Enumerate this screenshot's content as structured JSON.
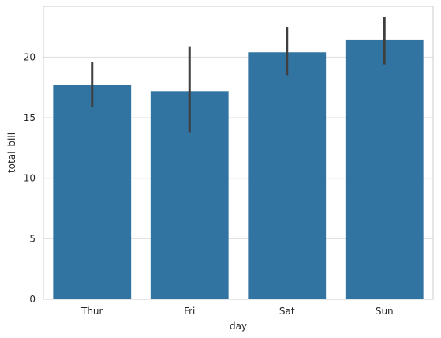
{
  "chart_data": {
    "type": "bar",
    "title": "",
    "xlabel": "day",
    "ylabel": "total_bill",
    "categories": [
      "Thur",
      "Fri",
      "Sat",
      "Sun"
    ],
    "values": [
      17.7,
      17.2,
      20.4,
      21.4
    ],
    "error_bars": [
      [
        15.9,
        19.6
      ],
      [
        13.8,
        20.9
      ],
      [
        18.5,
        22.5
      ],
      [
        19.4,
        23.3
      ]
    ],
    "ylim": [
      0,
      24.2
    ],
    "yticks": [
      0,
      5,
      10,
      15,
      20
    ],
    "ytick_labels": [
      "0",
      "5",
      "10",
      "15",
      "20"
    ],
    "grid": "horizontal",
    "colors": {
      "bar": "#3274a1",
      "error": "#3f3f3f",
      "grid": "#dddddd",
      "spine": "#cccccc"
    }
  }
}
